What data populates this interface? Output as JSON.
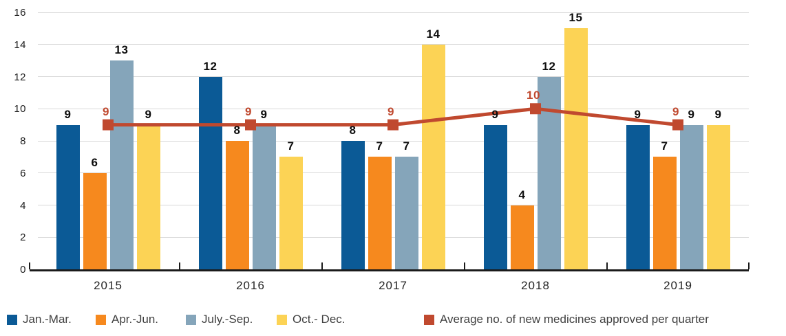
{
  "chart_data": {
    "type": "bar",
    "title": "",
    "xlabel": "",
    "ylabel": "",
    "categories": [
      "2015",
      "2016",
      "2017",
      "2018",
      "2019"
    ],
    "series": [
      {
        "name": "Jan.-Mar.",
        "color": "#0b5a96",
        "values": [
          9,
          12,
          8,
          9,
          9
        ]
      },
      {
        "name": "Apr.-Jun.",
        "color": "#f6891e",
        "values": [
          6,
          8,
          7,
          4,
          7
        ]
      },
      {
        "name": "July.-Sep.",
        "color": "#85a5ba",
        "values": [
          13,
          9,
          7,
          12,
          9
        ]
      },
      {
        "name": "Oct.- Dec.",
        "color": "#fcd355",
        "values": [
          9,
          7,
          14,
          15,
          9
        ]
      }
    ],
    "line_series": {
      "name": "Average no. of new medicines approved per quarter",
      "color": "#c0492f",
      "marker": "square",
      "values": [
        9,
        9,
        9,
        10,
        9
      ]
    },
    "ylim": [
      0,
      16
    ],
    "yticks": [
      0,
      2,
      4,
      6,
      8,
      10,
      12,
      14,
      16
    ],
    "grid": true,
    "legend_position": "bottom",
    "colors": {
      "axis": "#1a1a1a",
      "grid": "#d8d8d8",
      "value_label": "#0d0d0d",
      "avg_value_label": "#c0492f",
      "legend_text": "#404040",
      "background": "#ffffff"
    }
  }
}
